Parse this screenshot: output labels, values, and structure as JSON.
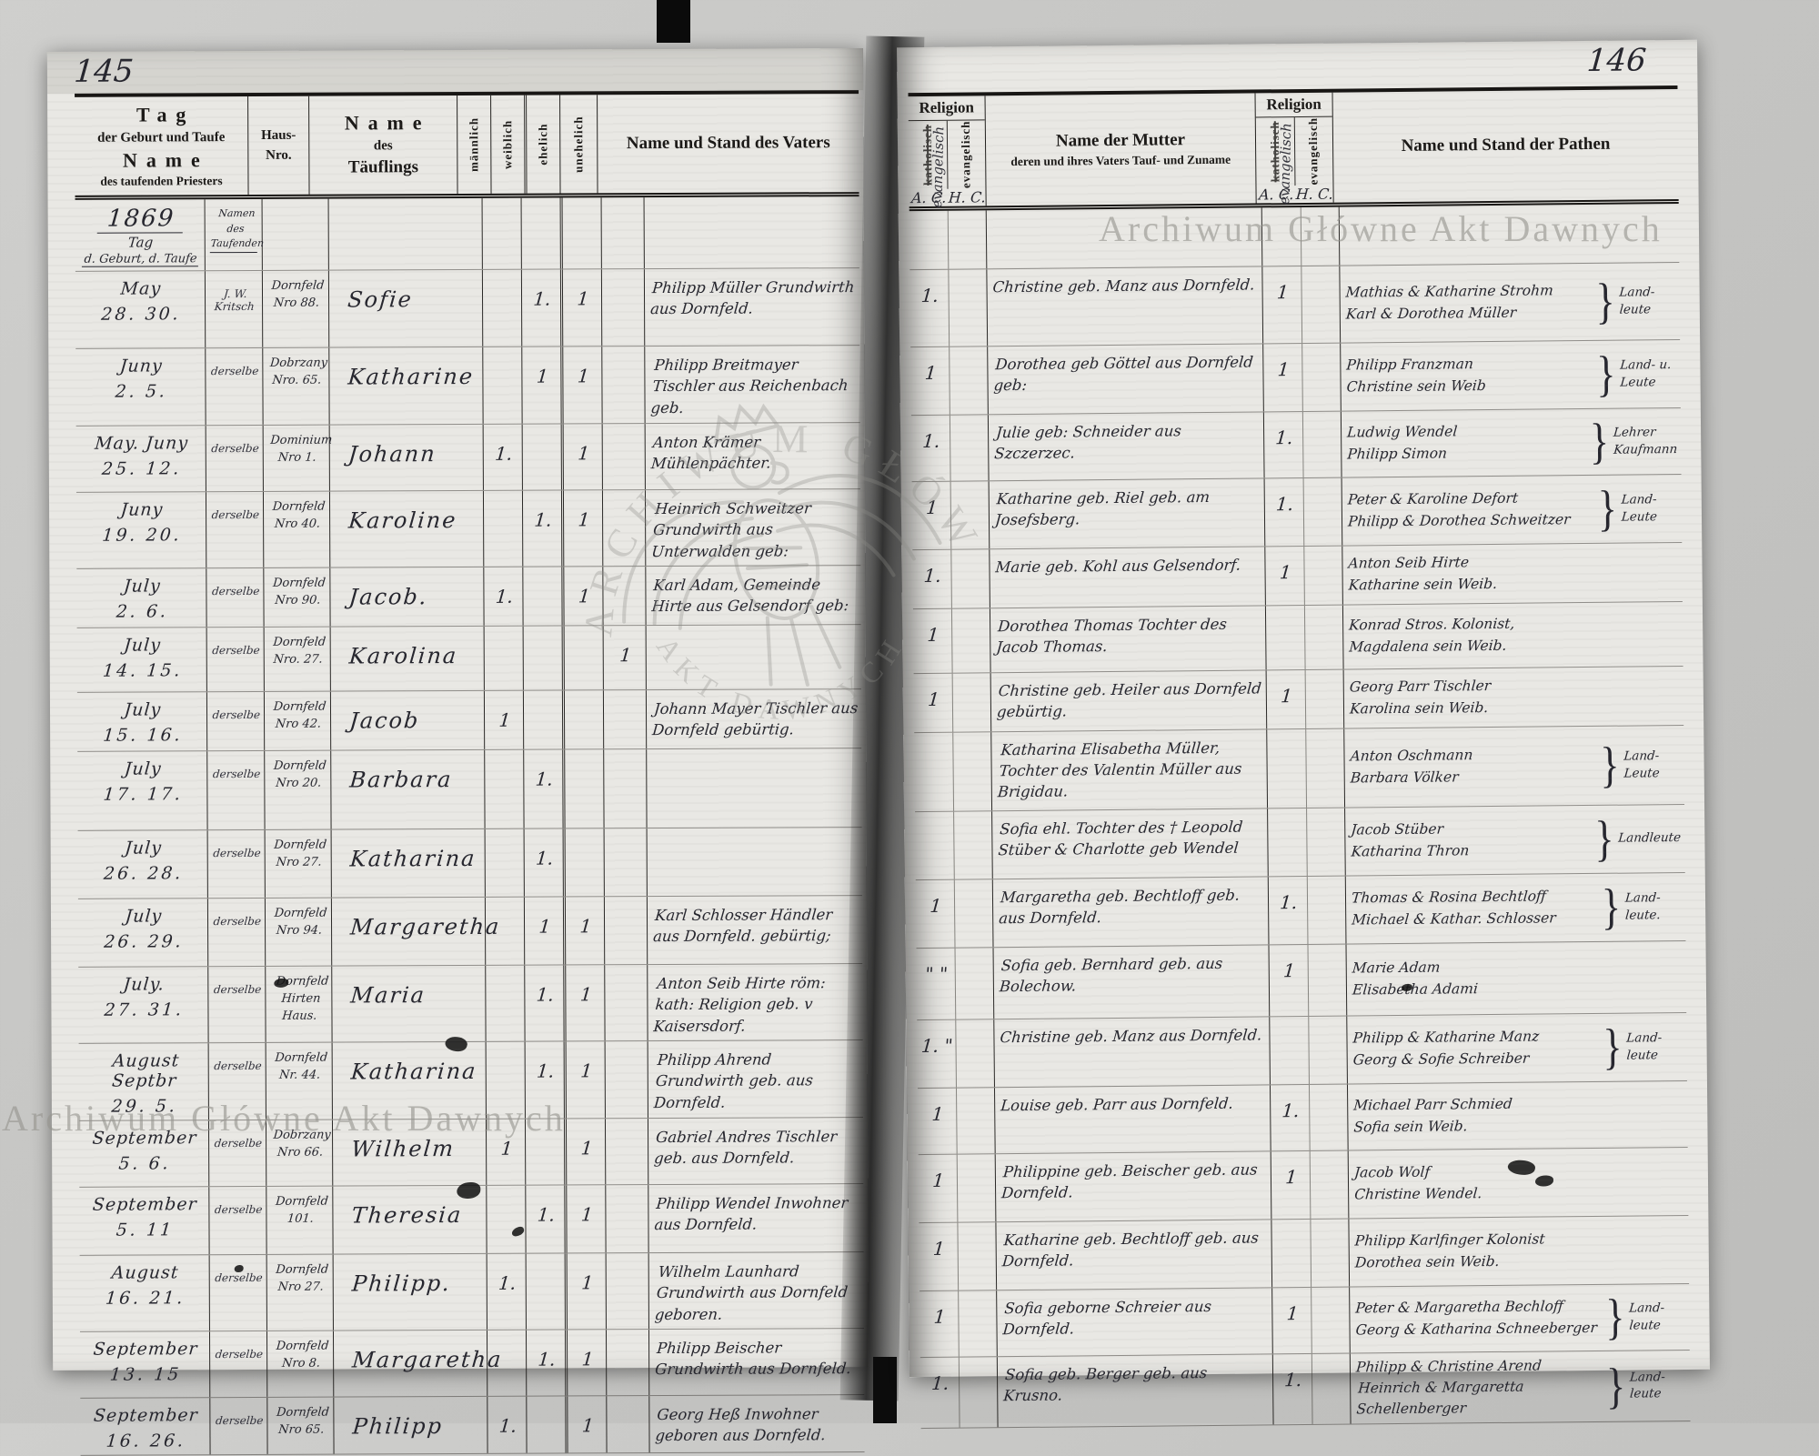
{
  "watermarks": {
    "text": "Archiwum Główne Akt Dawnych",
    "seal_top": "ARCHIWUM GŁÓWNE",
    "seal_bottom": "AKT DAWNYCH"
  },
  "glyphs": {
    "brace": "}"
  },
  "page_left": {
    "page_number": "145",
    "year": "1869",
    "year_note1": "Tag",
    "year_note2": "d. Geburt, d. Taufe",
    "priest_note": "Namen des Taufenden",
    "header": {
      "col_day_line1": "Tag",
      "col_day_line2": "der Geburt und Taufe",
      "col_day_line3": "Name",
      "col_day_line4": "des taufenden Priesters",
      "col_house_line1": "Haus-",
      "col_house_line2": "Nro.",
      "col_name_line1": "Name",
      "col_name_line2": "des",
      "col_name_line3": "Täuflings",
      "col_m": "männlich",
      "col_w": "weiblich",
      "col_e": "ehelich",
      "col_u": "unehelich",
      "col_father": "Name und Stand des Vaters"
    },
    "rows": [
      {
        "d1": "May",
        "d2": "28. 30.",
        "priest": "J. W. Kritsch",
        "house": "Dornfeld Nro 88.",
        "name": "Sofie",
        "m": "",
        "w": "1.",
        "e": "1",
        "u": "",
        "father": "Philipp Müller Grundwirth aus Dornfeld."
      },
      {
        "d1": "Juny",
        "d2": "2. 5.",
        "priest": "derselbe",
        "house": "Dobrzany Nro. 65.",
        "name": "Katharine",
        "m": "",
        "w": "1",
        "e": "1",
        "u": "",
        "father": "Philipp Breitmayer Tischler aus Reichenbach geb."
      },
      {
        "d1": "May. Juny",
        "d2": "25. 12.",
        "priest": "derselbe",
        "house": "Dominium Nro 1.",
        "name": "Johann",
        "m": "1.",
        "w": "",
        "e": "1",
        "u": "",
        "father": "Anton Krämer Mühlenpächter."
      },
      {
        "d1": "Juny",
        "d2": "19. 20.",
        "priest": "derselbe",
        "house": "Dornfeld Nro 40.",
        "name": "Karoline",
        "m": "",
        "w": "1.",
        "e": "1",
        "u": "",
        "father": "Heinrich Schweitzer Grund­wirth aus Unterwalden geb:"
      },
      {
        "d1": "July",
        "d2": "2. 6.",
        "priest": "derselbe",
        "house": "Dornfeld Nro 90.",
        "name": "Jacob.",
        "m": "1.",
        "w": "",
        "e": "1",
        "u": "",
        "father": "Karl Adam, Gemeinde Hirte aus Gelsendorf geb:"
      },
      {
        "d1": "July",
        "d2": "14. 15.",
        "priest": "derselbe",
        "house": "Dornfeld Nro. 27.",
        "name": "Karolina",
        "m": "",
        "w": "",
        "e": "",
        "u": "1",
        "father": ""
      },
      {
        "d1": "July",
        "d2": "15. 16.",
        "priest": "derselbe",
        "house": "Dornfeld Nro 42.",
        "name": "Jacob",
        "m": "1",
        "w": "",
        "e": "",
        "u": "",
        "father": "Johann Mayer Tischler aus Dornfeld gebürtig."
      },
      {
        "d1": "July",
        "d2": "17. 17.",
        "priest": "derselbe",
        "house": "Dornfeld Nro 20.",
        "name": "Barbara",
        "m": "",
        "w": "1.",
        "e": "",
        "u": "",
        "father": ""
      },
      {
        "d1": "July",
        "d2": "26. 28.",
        "priest": "derselbe",
        "house": "Dornfeld Nro 27.",
        "name": "Katharina",
        "m": "",
        "w": "1.",
        "e": "",
        "u": "",
        "father": ""
      },
      {
        "d1": "July",
        "d2": "26. 29.",
        "priest": "derselbe",
        "house": "Dornfeld Nro 94.",
        "name": "Margaretha",
        "m": "",
        "w": "1",
        "e": "1",
        "u": "",
        "father": "Karl Schlosser Händler aus Dornfeld. gebürtig;"
      },
      {
        "d1": "July.",
        "d2": "27. 31.",
        "priest": "derselbe",
        "house": "Dornfeld Hirten Haus.",
        "name": "Maria",
        "m": "",
        "w": "1.",
        "e": "1",
        "u": "",
        "father": "Anton Seib Hirte röm: kath: Religion geb. v Kaisersdorf."
      },
      {
        "d1": "August Septbr",
        "d2": "29. 5.",
        "priest": "derselbe",
        "house": "Dornfeld Nr. 44.",
        "name": "Katharina",
        "m": "",
        "w": "1.",
        "e": "1",
        "u": "",
        "father": "Philipp Ahrend Grundwirth geb. aus Dornfeld."
      },
      {
        "d1": "September",
        "d2": "5. 6.",
        "priest": "derselbe",
        "house": "Dobrzany Nro 66.",
        "name": "Wilhelm",
        "m": "1",
        "w": "",
        "e": "1",
        "u": "",
        "father": "Gabriel Andres Tischler geb. aus Dornfeld."
      },
      {
        "d1": "September",
        "d2": "5. 11",
        "priest": "derselbe",
        "house": "Dornfeld 101.",
        "name": "Theresia",
        "m": "",
        "w": "1.",
        "e": "1",
        "u": "",
        "father": "Philipp Wendel Inwohner aus Dornfeld."
      },
      {
        "d1": "August",
        "d2": "16. 21.",
        "priest": "derselbe",
        "house": "Dornfeld Nro 27.",
        "name": "Philipp.",
        "m": "1.",
        "w": "",
        "e": "1",
        "u": "",
        "father": "Wilhelm Launhard Grundwirth aus Dornfeld geboren."
      },
      {
        "d1": "September",
        "d2": "13. 15",
        "priest": "derselbe",
        "house": "Dornfeld Nro 8.",
        "name": "Margaretha",
        "m": "",
        "w": "1.",
        "e": "1",
        "u": "",
        "father": "Philipp Beischer Grundwirth aus Dornfeld."
      },
      {
        "d1": "September",
        "d2": "16. 26.",
        "priest": "derselbe",
        "house": "Dornfeld Nro 65.",
        "name": "Philipp",
        "m": "1.",
        "w": "",
        "e": "1",
        "u": "",
        "father": "Georg Heß Inwohner geboren aus Dornfeld."
      }
    ]
  },
  "page_right": {
    "page_number": "146",
    "header": {
      "religion": "Religion",
      "rel_sub_kath": "katholisch",
      "rel_sub_kath_hand": "evangelisch",
      "rel_sub_evang": "evangelisch",
      "rel_note_ac": "A. C.",
      "rel_note_hc": "H. C.",
      "col_mother_line1": "Name der Mutter",
      "col_mother_line2": "deren und ihres Vaters Tauf- und Zuname",
      "col_pathen": "Name und Stand der Pathen"
    },
    "rows": [
      {
        "rel1": "1.",
        "mother": "Christine geb. Manz aus Dornfeld.",
        "rel2": "1",
        "p1": "Mathias & Katharine Strohm",
        "p2": "Karl & Dorothea Müller",
        "brace": [
          "Land-",
          "leute"
        ]
      },
      {
        "rel1": "1",
        "mother": "Dorothea geb Göttel aus Dornfeld geb:",
        "rel2": "1",
        "p1": "Philipp Franzman",
        "p2": "Christine sein Weib",
        "brace": [
          "Land- u.",
          "Leute"
        ]
      },
      {
        "rel1": "1.",
        "mother": "Julie geb: Schneider aus Szczerzec.",
        "rel2": "1.",
        "p1": "Ludwig Wendel",
        "p2": "Philipp Simon",
        "brace": [
          "Lehrer",
          "Kaufmann"
        ]
      },
      {
        "rel1": "1",
        "mother": "Katharine geb. Riel geb. am Josefsberg.",
        "rel2": "1.",
        "p1": "Peter & Karoline Defort",
        "p2": "Philipp & Dorothea Schweitzer",
        "brace": [
          "Land-",
          "Leute"
        ]
      },
      {
        "rel1": "1.",
        "mother": "Marie geb. Kohl aus Gelsendorf.",
        "rel2": "1",
        "p1": "Anton Seib Hirte",
        "p2": "Katharine sein Weib.",
        "brace": []
      },
      {
        "rel1": "1",
        "mother": "Dorothea Thomas Tochter des Jacob Thomas.",
        "rel2": "",
        "p1": "Konrad Stros. Kolonist,",
        "p2": "Magdalena sein Weib.",
        "brace": []
      },
      {
        "rel1": "1",
        "mother": "Christine geb. Heiler aus Dornfeld gebürtig.",
        "rel2": "1",
        "p1": "Georg Parr Tischler",
        "p2": "Karolina sein Weib.",
        "brace": []
      },
      {
        "rel1": "",
        "mother": "Katharina Elisabetha Müller, Tochter des Valentin Müller aus Brigidau.",
        "rel2": "",
        "p1": "Anton Oschmann",
        "p2": "Barbara Völker",
        "brace": [
          "Land-",
          "Leute"
        ]
      },
      {
        "rel1": "",
        "mother": "Sofia ehl. Tochter des † Leopold Stüber & Charlotte geb Wendel",
        "rel2": "",
        "p1": "Jacob Stüber",
        "p2": "Katharina Thron",
        "brace": [
          "Landleute"
        ]
      },
      {
        "rel1": "1",
        "mother": "Margaretha geb. Bechtloff geb. aus Dornfeld.",
        "rel2": "1.",
        "p1": "Thomas & Rosina Bechtloff",
        "p2": "Michael & Kathar. Schlosser",
        "brace": [
          "Land-",
          "leute."
        ]
      },
      {
        "rel1": "\" \"",
        "mother": "Sofia geb. Bernhard geb. aus Bolechow.",
        "rel2": "1",
        "p1": "Marie Adam",
        "p2": "Elisabetha Adami",
        "brace": []
      },
      {
        "rel1": "1. \"",
        "mother": "Christine geb. Manz aus Dornfeld.",
        "rel2": "",
        "p1": "Philipp & Katharine Manz",
        "p2": "Georg & Sofie Schreiber",
        "brace": [
          "Land-",
          "leute"
        ]
      },
      {
        "rel1": "1",
        "mother": "Louise geb. Parr aus Dornfeld.",
        "rel2": "1.",
        "p1": "Michael Parr Schmied",
        "p2": "Sofia sein Weib.",
        "brace": []
      },
      {
        "rel1": "1",
        "mother": "Philippine geb. Beischer geb. aus Dornfeld.",
        "rel2": "1",
        "p1": "Jacob Wolf",
        "p2": "Christine Wendel.",
        "brace": []
      },
      {
        "rel1": "1",
        "mother": "Katharine geb. Bechtloff geb. aus Dornfeld.",
        "rel2": "",
        "p1": "Philipp Karlfinger Kolonist",
        "p2": "Dorothea sein Weib.",
        "brace": []
      },
      {
        "rel1": "1",
        "mother": "Sofia geborne Schreier aus Dornfeld.",
        "rel2": "1",
        "p1": "Peter & Margaretha Bechloff",
        "p2": "Georg & Katharina Schneeberger",
        "brace": [
          "Land-",
          "leute"
        ]
      },
      {
        "rel1": "1.",
        "mother": "Sofia geb. Berger geb. aus Krusno.",
        "rel2": "1.",
        "p1": "Philipp & Christine Arend",
        "p2": "Heinrich & Margaretta Schellenberger",
        "brace": [
          "Land-",
          "leute"
        ]
      }
    ]
  }
}
